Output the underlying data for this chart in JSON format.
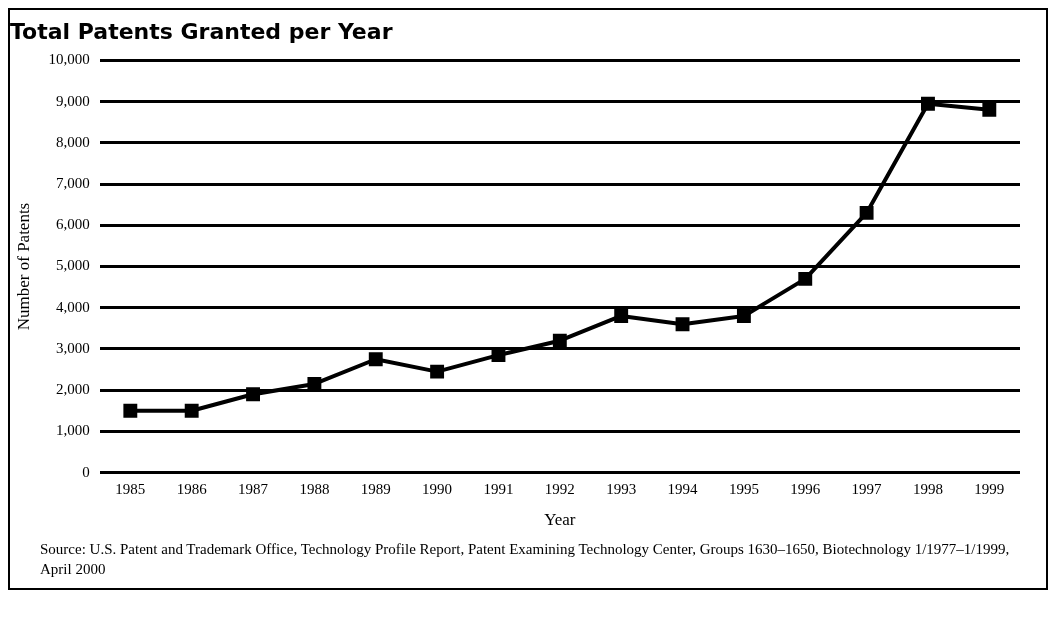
{
  "chart_data": {
    "type": "line",
    "title": "Total Patents Granted per Year",
    "xlabel": "Year",
    "ylabel": "Number of Patents",
    "categories": [
      "1985",
      "1986",
      "1987",
      "1988",
      "1989",
      "1990",
      "1991",
      "1992",
      "1993",
      "1994",
      "1995",
      "1996",
      "1997",
      "1998",
      "1999"
    ],
    "series": [
      {
        "color": "#000000",
        "values": [
          1500,
          1500,
          1900,
          2150,
          2750,
          2450,
          2850,
          3200,
          3800,
          3600,
          3800,
          4700,
          6300,
          8950,
          8800
        ]
      }
    ],
    "ylim": [
      0,
      10000
    ],
    "yticks": [
      {
        "value": 0,
        "label": "0"
      },
      {
        "value": 1000,
        "label": "1,000"
      },
      {
        "value": 2000,
        "label": "2,000"
      },
      {
        "value": 3000,
        "label": "3,000"
      },
      {
        "value": 4000,
        "label": "4,000"
      },
      {
        "value": 5000,
        "label": "5,000"
      },
      {
        "value": 6000,
        "label": "6,000"
      },
      {
        "value": 7000,
        "label": "7,000"
      },
      {
        "value": 8000,
        "label": "8,000"
      },
      {
        "value": 9000,
        "label": "9,000"
      },
      {
        "value": 10000,
        "label": "10,000"
      }
    ],
    "grid": "y",
    "legend": false,
    "marker": "square",
    "line_style": "solid",
    "annotations": [
      "Source: U.S. Patent and Trademark Office, Technology Profile Report, Patent Examining Technology Center, Groups 1630–1650, Biotechnology 1/1977–1/1999, April 2000"
    ]
  }
}
